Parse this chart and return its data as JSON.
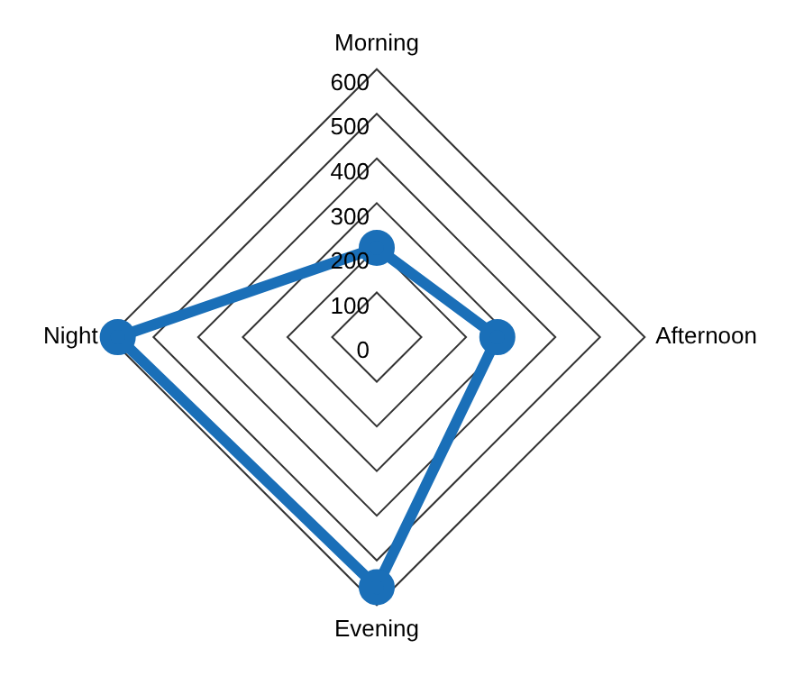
{
  "chart_data": {
    "type": "radar",
    "categories": [
      "Morning",
      "Afternoon",
      "Evening",
      "Night"
    ],
    "series": [
      {
        "color": "#1a6fb8",
        "values": [
          200,
          270,
          560,
          580
        ]
      }
    ],
    "ylim": [
      0,
      600
    ],
    "yticks": [
      0,
      100,
      200,
      300,
      400,
      500,
      600
    ],
    "grid": true,
    "legend": false,
    "marker": "circle",
    "line_style": "solid"
  }
}
